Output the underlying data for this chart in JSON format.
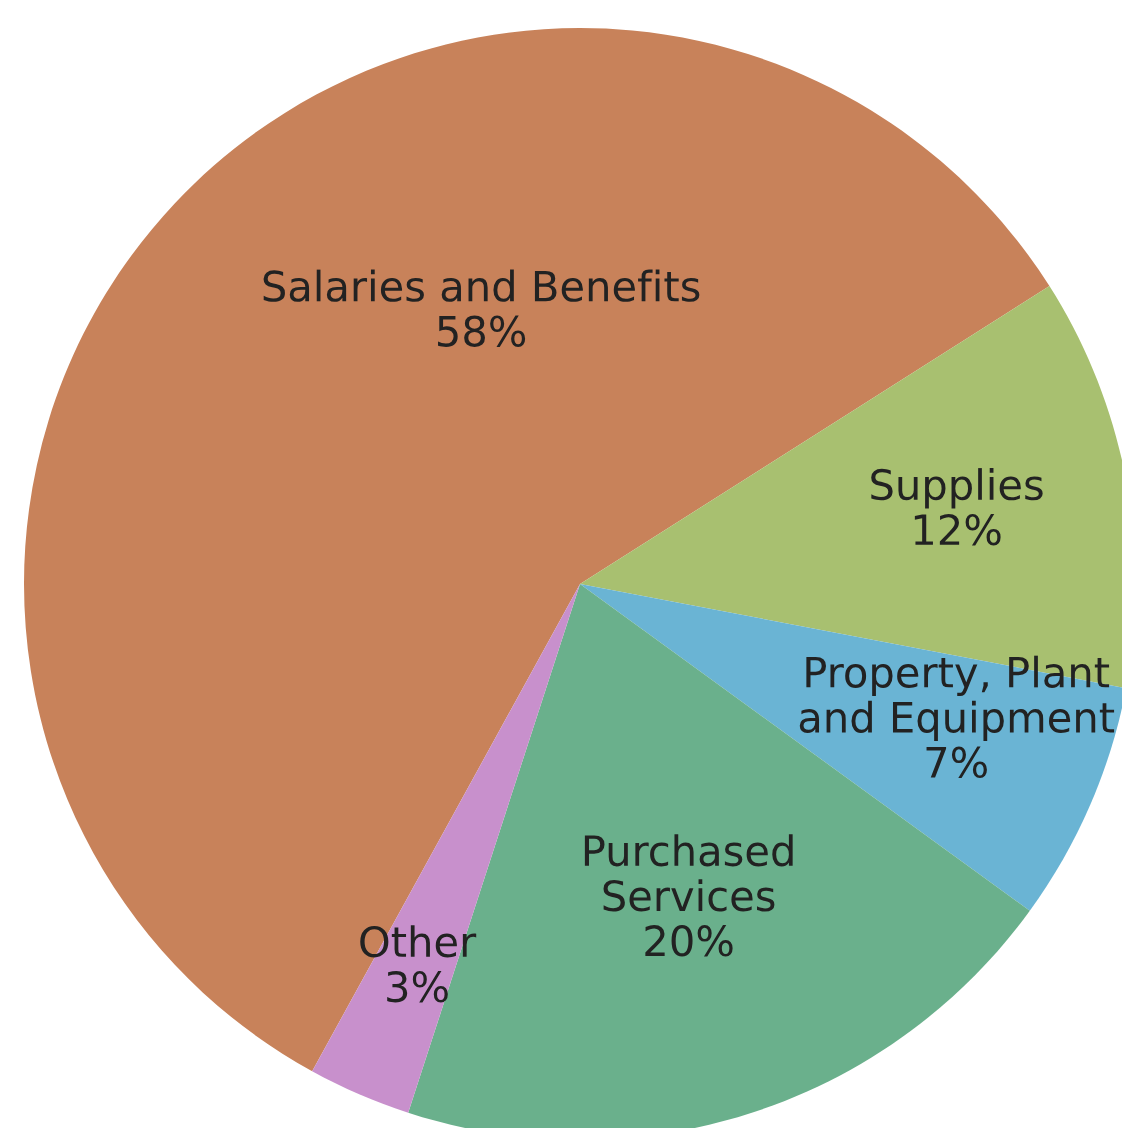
{
  "chart_data": {
    "type": "pie",
    "categories": [
      "Salaries and Benefits",
      "Supplies",
      "Property, Plant\nand Equipment",
      "Purchased\nServices",
      "Other"
    ],
    "values": [
      58,
      12,
      7,
      20,
      3
    ],
    "value_labels": [
      "58%",
      "12%",
      "7%",
      "20%",
      "3%"
    ],
    "colors": [
      "#c8825a",
      "#a8c070",
      "#6ab4d4",
      "#6ab08c",
      "#c890cc"
    ],
    "legend": false
  }
}
